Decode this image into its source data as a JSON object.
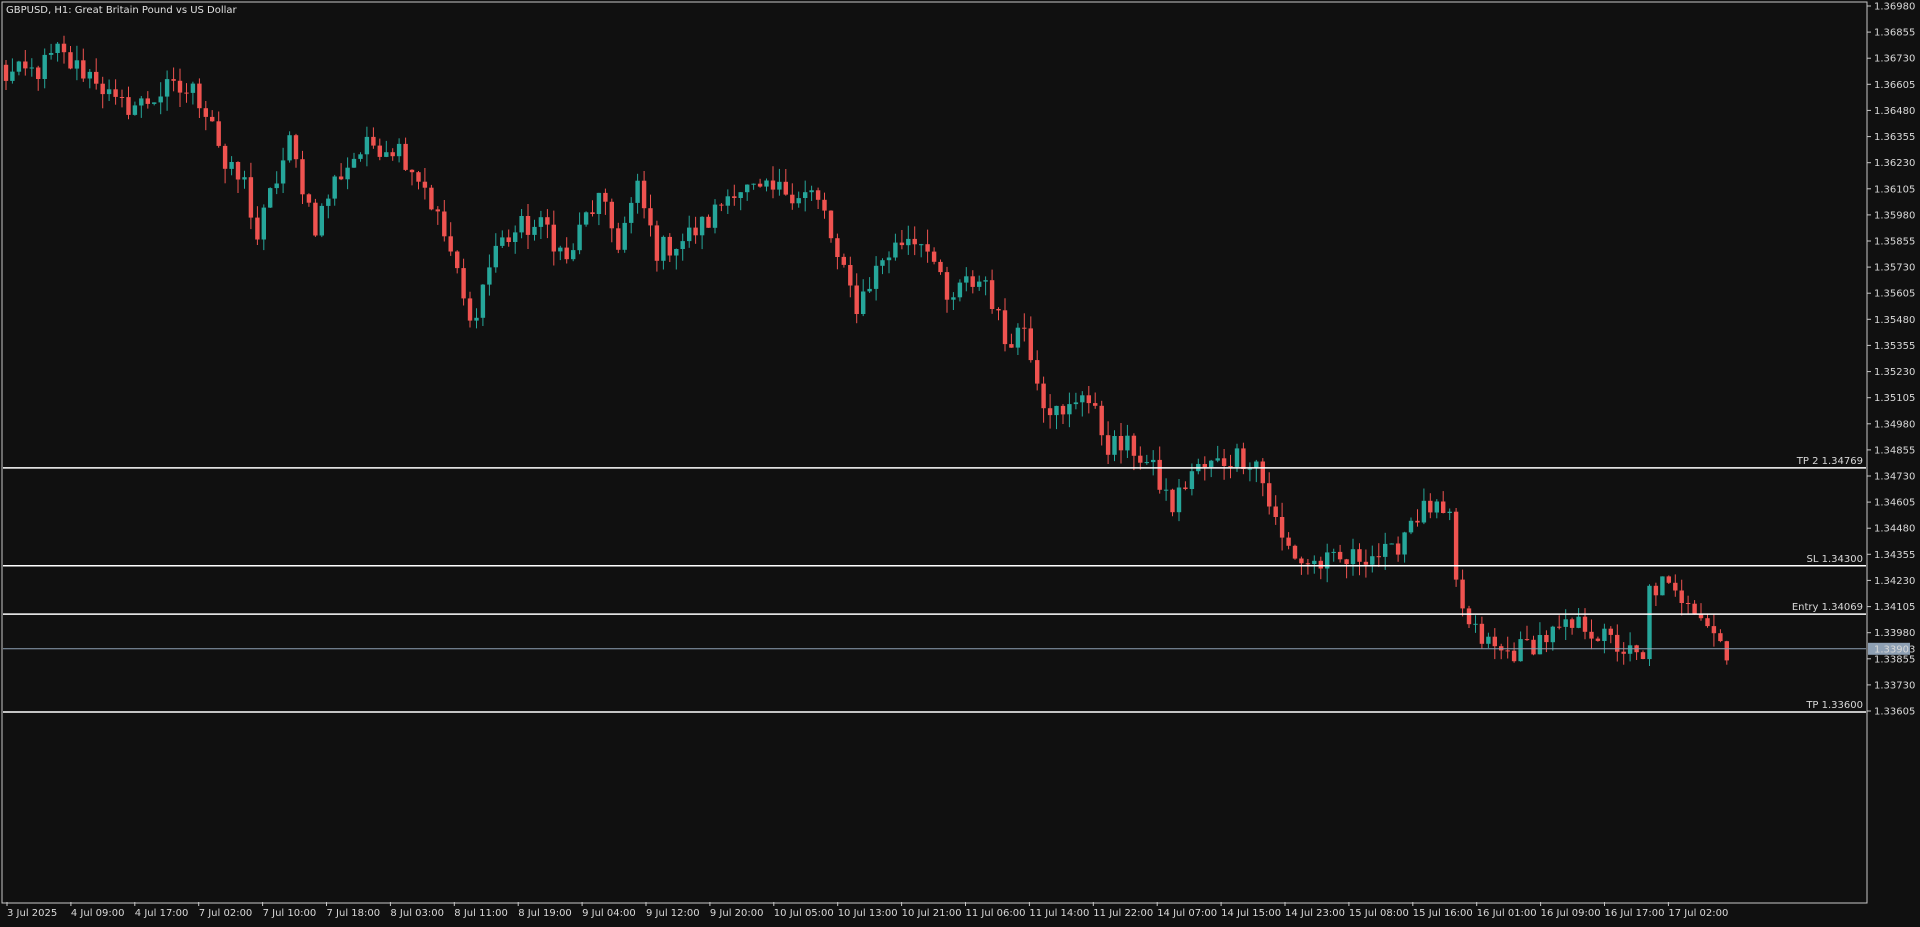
{
  "colors": {
    "background": "#101010",
    "frame": "#c8c8c8",
    "bull": "#26a69a",
    "bear": "#ef5350",
    "level_line": "#ffffff",
    "current_price_line": "#8ea0b4",
    "text": "#d8d8d8"
  },
  "chart_data": {
    "type": "candlestick",
    "title": "GBPUSD, H1:  Great Britain Pound vs US Dollar",
    "symbol": "GBPUSD",
    "timeframe": "H1",
    "grid": false,
    "ylim": [
      1.336,
      1.3698
    ],
    "y_ticks": [
      "1.36980",
      "1.36855",
      "1.36730",
      "1.36605",
      "1.36480",
      "1.36355",
      "1.36230",
      "1.36105",
      "1.35980",
      "1.35855",
      "1.35730",
      "1.35605",
      "1.35480",
      "1.35355",
      "1.35230",
      "1.35105",
      "1.34980",
      "1.34855",
      "1.34730",
      "1.34605",
      "1.34480",
      "1.34355",
      "1.34230",
      "1.34105",
      "1.33980",
      "1.33855",
      "1.33730",
      "1.33605"
    ],
    "x_ticks": [
      "3 Jul 2025",
      "4 Jul 09:00",
      "4 Jul 17:00",
      "7 Jul 02:00",
      "7 Jul 10:00",
      "7 Jul 18:00",
      "8 Jul 03:00",
      "8 Jul 11:00",
      "8 Jul 19:00",
      "9 Jul 04:00",
      "9 Jul 12:00",
      "9 Jul 20:00",
      "10 Jul 05:00",
      "10 Jul 13:00",
      "10 Jul 21:00",
      "11 Jul 06:00",
      "11 Jul 14:00",
      "11 Jul 22:00",
      "14 Jul 07:00",
      "14 Jul 15:00",
      "14 Jul 23:00",
      "15 Jul 08:00",
      "15 Jul 16:00",
      "16 Jul 01:00",
      "16 Jul 09:00",
      "16 Jul 17:00",
      "17 Jul 02:00"
    ],
    "levels": [
      {
        "label": "TP 2 1.34769",
        "value": 1.34769
      },
      {
        "label": "SL 1.34300",
        "value": 1.343
      },
      {
        "label": "Entry 1.34069",
        "value": 1.34069
      },
      {
        "label": "TP 1.33600",
        "value": 1.336
      }
    ],
    "current_price": {
      "label": "1.33903",
      "value": 1.33903
    },
    "close_path": [
      [
        0,
        1.3664
      ],
      [
        6,
        1.3667
      ],
      [
        9,
        1.3676
      ],
      [
        11,
        1.367
      ],
      [
        15,
        1.3664
      ],
      [
        18,
        1.365
      ],
      [
        22,
        1.3651
      ],
      [
        26,
        1.3658
      ],
      [
        30,
        1.3657
      ],
      [
        33,
        1.3645
      ],
      [
        35,
        1.362
      ],
      [
        38,
        1.3613
      ],
      [
        40,
        1.3587
      ],
      [
        42,
        1.3607
      ],
      [
        45,
        1.3632
      ],
      [
        49,
        1.3593
      ],
      [
        52,
        1.3614
      ],
      [
        55,
        1.3626
      ],
      [
        58,
        1.3632
      ],
      [
        62,
        1.363
      ],
      [
        66,
        1.3612
      ],
      [
        70,
        1.358
      ],
      [
        73,
        1.3545
      ],
      [
        77,
        1.3583
      ],
      [
        81,
        1.3592
      ],
      [
        85,
        1.3592
      ],
      [
        88,
        1.3575
      ],
      [
        91,
        1.3597
      ],
      [
        93,
        1.3605
      ],
      [
        96,
        1.3585
      ],
      [
        99,
        1.361
      ],
      [
        102,
        1.3581
      ],
      [
        106,
        1.3586
      ],
      [
        110,
        1.3595
      ],
      [
        114,
        1.3612
      ],
      [
        118,
        1.3608
      ],
      [
        122,
        1.361
      ],
      [
        126,
        1.3608
      ],
      [
        128,
        1.3598
      ],
      [
        130,
        1.3576
      ],
      [
        133,
        1.3555
      ],
      [
        137,
        1.3577
      ],
      [
        141,
        1.3588
      ],
      [
        144,
        1.3585
      ],
      [
        147,
        1.3555
      ],
      [
        150,
        1.3565
      ],
      [
        153,
        1.3567
      ],
      [
        156,
        1.3538
      ],
      [
        159,
        1.3545
      ],
      [
        162,
        1.351
      ],
      [
        165,
        1.35
      ],
      [
        168,
        1.3515
      ],
      [
        172,
        1.3488
      ],
      [
        176,
        1.3486
      ],
      [
        179,
        1.3475
      ],
      [
        182,
        1.3458
      ],
      [
        185,
        1.3475
      ],
      [
        188,
        1.3478
      ],
      [
        192,
        1.3483
      ],
      [
        195,
        1.348
      ],
      [
        197,
        1.346
      ],
      [
        199,
        1.3442
      ],
      [
        202,
        1.3432
      ],
      [
        205,
        1.3431
      ],
      [
        209,
        1.3432
      ],
      [
        212,
        1.3436
      ],
      [
        216,
        1.3435
      ],
      [
        219,
        1.3453
      ],
      [
        222,
        1.3458
      ],
      [
        225,
        1.345
      ],
      [
        226,
        1.342
      ],
      [
        228,
        1.34
      ],
      [
        230,
        1.3395
      ],
      [
        233,
        1.3388
      ],
      [
        236,
        1.339
      ],
      [
        239,
        1.3395
      ],
      [
        242,
        1.3398
      ],
      [
        246,
        1.3402
      ],
      [
        249,
        1.3395
      ],
      [
        252,
        1.339
      ],
      [
        255,
        1.3383
      ],
      [
        256,
        1.3418
      ],
      [
        258,
        1.3421
      ],
      [
        260,
        1.3415
      ],
      [
        262,
        1.3416
      ],
      [
        264,
        1.3408
      ],
      [
        266,
        1.3398
      ],
      [
        268,
        1.339
      ]
    ],
    "candle_count": 268
  }
}
